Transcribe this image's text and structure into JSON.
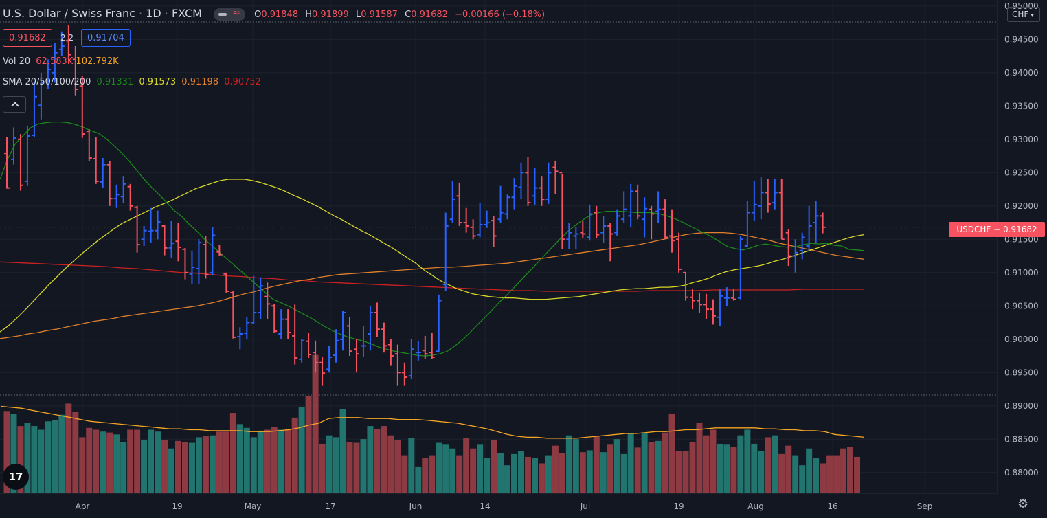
{
  "header": {
    "symbol_title": "U.S. Dollar / Swiss Franc",
    "interval": "1D",
    "exchange": "FXCM",
    "ohlc": {
      "o_label": "O",
      "o": "0.91848",
      "h_label": "H",
      "h": "0.91899",
      "l_label": "L",
      "l": "0.91587",
      "c_label": "C",
      "c": "0.91682",
      "change": "−0.00166 (−0.18%)"
    },
    "bid": "0.91682",
    "spread": "2.2",
    "ask": "0.91704"
  },
  "indicators": {
    "vol": {
      "label": "Vol 20",
      "v1": "62.583K",
      "v2": "102.792K"
    },
    "sma": {
      "label": "SMA 20/50/100/200",
      "v20": "0.91331",
      "v50": "0.91573",
      "v100": "0.91198",
      "v200": "0.90752"
    }
  },
  "axis": {
    "currency": "CHF",
    "last_label": "USDCHF",
    "last_value": "0.91682"
  },
  "colors": {
    "up": "#2962ff",
    "down": "#f7525f",
    "vol_up": "#22756f",
    "vol_down": "#8e3a43",
    "sma20": "#1b8a1b",
    "sma50": "#d6d62a",
    "sma100": "#e0802b",
    "sma200": "#cc2121",
    "vol_ma": "#f5a623"
  },
  "chart_data": {
    "type": "ohlc",
    "y_ticks": [
      "0.95000",
      "0.94500",
      "0.94000",
      "0.93500",
      "0.93000",
      "0.92500",
      "0.92000",
      "0.91500",
      "0.91000",
      "0.90500",
      "0.90000",
      "0.89500",
      "0.89000",
      "0.88500",
      "0.88000"
    ],
    "x_ticks": [
      "Apr",
      "19",
      "May",
      "17",
      "Jun",
      "14",
      "Jul",
      "19",
      "Aug",
      "16",
      "Sep"
    ],
    "ylim": [
      0.8775,
      0.9505
    ],
    "last_price": 0.91682,
    "bars": [
      [
        0.9303,
        0.9226,
        0.9279,
        0.9227
      ],
      [
        0.9318,
        0.9262,
        0.927,
        0.9302
      ],
      [
        0.9308,
        0.9223,
        0.93,
        0.9231
      ],
      [
        0.932,
        0.923,
        0.9237,
        0.9305
      ],
      [
        0.9387,
        0.9303,
        0.9306,
        0.9364
      ],
      [
        0.94,
        0.933,
        0.9351,
        0.9385
      ],
      [
        0.942,
        0.9375,
        0.9389,
        0.9405
      ],
      [
        0.9445,
        0.9385,
        0.94,
        0.943
      ],
      [
        0.9462,
        0.9425,
        0.9435,
        0.944
      ],
      [
        0.9472,
        0.942,
        0.9448,
        0.9427
      ],
      [
        0.944,
        0.9365,
        0.942,
        0.9375
      ],
      [
        0.9395,
        0.9302,
        0.938,
        0.9308
      ],
      [
        0.9315,
        0.9267,
        0.9312,
        0.9272
      ],
      [
        0.9303,
        0.9233,
        0.9271,
        0.9237
      ],
      [
        0.9272,
        0.9227,
        0.9236,
        0.9262
      ],
      [
        0.9267,
        0.92,
        0.9262,
        0.9211
      ],
      [
        0.9232,
        0.9197,
        0.9211,
        0.9217
      ],
      [
        0.9245,
        0.9204,
        0.9214,
        0.9233
      ],
      [
        0.9233,
        0.9193,
        0.9229,
        0.92
      ],
      [
        0.92,
        0.913,
        0.9198,
        0.9142
      ],
      [
        0.917,
        0.914,
        0.915,
        0.9163
      ],
      [
        0.9197,
        0.9145,
        0.9162,
        0.9163
      ],
      [
        0.9193,
        0.915,
        0.9163,
        0.9176
      ],
      [
        0.9172,
        0.9126,
        0.917,
        0.9137
      ],
      [
        0.9178,
        0.9122,
        0.9137,
        0.9144
      ],
      [
        0.9175,
        0.9117,
        0.9147,
        0.9138
      ],
      [
        0.9137,
        0.909,
        0.9135,
        0.91
      ],
      [
        0.9133,
        0.9083,
        0.9098,
        0.9108
      ],
      [
        0.915,
        0.9083,
        0.9106,
        0.9145
      ],
      [
        0.9155,
        0.9091,
        0.9142,
        0.9097
      ],
      [
        0.9168,
        0.9096,
        0.91,
        0.9156
      ],
      [
        0.9142,
        0.9125,
        0.9131,
        0.9127
      ],
      [
        0.91,
        0.907,
        0.9098,
        0.9072
      ],
      [
        0.9072,
        0.9001,
        0.907,
        0.9003
      ],
      [
        0.9018,
        0.8985,
        0.9004,
        0.9008
      ],
      [
        0.9033,
        0.9,
        0.9009,
        0.9025
      ],
      [
        0.9095,
        0.9023,
        0.9025,
        0.904
      ],
      [
        0.9093,
        0.903,
        0.904,
        0.908
      ],
      [
        0.9085,
        0.903,
        0.9064,
        0.9053
      ],
      [
        0.9053,
        0.901,
        0.905,
        0.9012
      ],
      [
        0.9045,
        0.9,
        0.9008,
        0.903
      ],
      [
        0.9045,
        0.9,
        0.903,
        0.901
      ],
      [
        0.9052,
        0.8962,
        0.9005,
        0.8972
      ],
      [
        0.9,
        0.8965,
        0.897,
        0.8998
      ],
      [
        0.901,
        0.8972,
        0.8997,
        0.8977
      ],
      [
        0.8998,
        0.895,
        0.898,
        0.8965
      ],
      [
        0.8973,
        0.893,
        0.8965,
        0.8949
      ],
      [
        0.899,
        0.895,
        0.8955,
        0.8973
      ],
      [
        0.9015,
        0.8965,
        0.8976,
        0.8998
      ],
      [
        0.9043,
        0.8983,
        0.9,
        0.904
      ],
      [
        0.9033,
        0.8975,
        0.902,
        0.8982
      ],
      [
        0.9,
        0.895,
        0.8985,
        0.8978
      ],
      [
        0.902,
        0.8973,
        0.899,
        0.899
      ],
      [
        0.905,
        0.8983,
        0.9008,
        0.904
      ],
      [
        0.9055,
        0.9003,
        0.904,
        0.9015
      ],
      [
        0.9025,
        0.898,
        0.9015,
        0.899
      ],
      [
        0.9,
        0.896,
        0.8992,
        0.8975
      ],
      [
        0.8992,
        0.893,
        0.8978,
        0.895
      ],
      [
        0.8965,
        0.893,
        0.895,
        0.8943
      ],
      [
        0.9,
        0.894,
        0.8945,
        0.8985
      ],
      [
        0.8997,
        0.8968,
        0.898,
        0.898
      ],
      [
        0.9005,
        0.897,
        0.8983,
        0.8978
      ],
      [
        0.901,
        0.897,
        0.898,
        0.8973
      ],
      [
        0.9067,
        0.898,
        0.8982,
        0.9058
      ],
      [
        0.919,
        0.9072,
        0.9082,
        0.917
      ],
      [
        0.9238,
        0.9175,
        0.918,
        0.921
      ],
      [
        0.9235,
        0.917,
        0.9215,
        0.9175
      ],
      [
        0.9197,
        0.916,
        0.9175,
        0.917
      ],
      [
        0.918,
        0.915,
        0.9168,
        0.9155
      ],
      [
        0.9205,
        0.9153,
        0.9157,
        0.9172
      ],
      [
        0.9193,
        0.9167,
        0.9172,
        0.9175
      ],
      [
        0.9185,
        0.9138,
        0.9178,
        0.9155
      ],
      [
        0.923,
        0.9175,
        0.918,
        0.919
      ],
      [
        0.9217,
        0.918,
        0.9188,
        0.9213
      ],
      [
        0.9242,
        0.9195,
        0.9213,
        0.923
      ],
      [
        0.9265,
        0.921,
        0.9228,
        0.925
      ],
      [
        0.9274,
        0.92,
        0.925,
        0.9205
      ],
      [
        0.9257,
        0.9202,
        0.9215,
        0.9227
      ],
      [
        0.9245,
        0.92,
        0.9227,
        0.921
      ],
      [
        0.9265,
        0.9203,
        0.921,
        0.925
      ],
      [
        0.9268,
        0.9218,
        0.9258,
        0.9252
      ],
      [
        0.9248,
        0.9135,
        0.925,
        0.915
      ],
      [
        0.9175,
        0.9135,
        0.915,
        0.916
      ],
      [
        0.9168,
        0.9135,
        0.9155,
        0.9158
      ],
      [
        0.9177,
        0.9152,
        0.916,
        0.9158
      ],
      [
        0.9202,
        0.9148,
        0.9153,
        0.9188
      ],
      [
        0.92,
        0.9152,
        0.919,
        0.9157
      ],
      [
        0.9185,
        0.9145,
        0.916,
        0.917
      ],
      [
        0.9175,
        0.9117,
        0.917,
        0.9158
      ],
      [
        0.9195,
        0.9155,
        0.916,
        0.9185
      ],
      [
        0.9222,
        0.9175,
        0.918,
        0.9195
      ],
      [
        0.9233,
        0.9168,
        0.9185,
        0.9222
      ],
      [
        0.9232,
        0.918,
        0.9222,
        0.9185
      ],
      [
        0.9213,
        0.9153,
        0.918,
        0.9196
      ],
      [
        0.92,
        0.915,
        0.9195,
        0.9188
      ],
      [
        0.9222,
        0.9175,
        0.9192,
        0.9195
      ],
      [
        0.921,
        0.915,
        0.9195,
        0.9153
      ],
      [
        0.9195,
        0.913,
        0.9155,
        0.9148
      ],
      [
        0.916,
        0.91,
        0.915,
        0.9105
      ],
      [
        0.91,
        0.9058,
        0.91,
        0.9063
      ],
      [
        0.9075,
        0.9045,
        0.9063,
        0.9058
      ],
      [
        0.907,
        0.904,
        0.9058,
        0.9052
      ],
      [
        0.9068,
        0.903,
        0.9052,
        0.9045
      ],
      [
        0.906,
        0.9022,
        0.9045,
        0.9035
      ],
      [
        0.9075,
        0.902,
        0.9033,
        0.9065
      ],
      [
        0.9078,
        0.905,
        0.9062,
        0.9062
      ],
      [
        0.9075,
        0.9058,
        0.9062,
        0.906
      ],
      [
        0.9155,
        0.906,
        0.9062,
        0.915
      ],
      [
        0.9208,
        0.9138,
        0.914,
        0.919
      ],
      [
        0.9238,
        0.9178,
        0.919,
        0.9202
      ],
      [
        0.9243,
        0.918,
        0.92,
        0.922
      ],
      [
        0.924,
        0.919,
        0.922,
        0.9203
      ],
      [
        0.924,
        0.9195,
        0.9205,
        0.922
      ],
      [
        0.924,
        0.915,
        0.922,
        0.915
      ],
      [
        0.9165,
        0.911,
        0.916,
        0.9125
      ],
      [
        0.915,
        0.91,
        0.9125,
        0.913
      ],
      [
        0.916,
        0.912,
        0.9133,
        0.9153
      ],
      [
        0.92,
        0.9133,
        0.914,
        0.917
      ],
      [
        0.9208,
        0.9145,
        0.9175,
        0.9185
      ],
      [
        0.919,
        0.9159,
        0.9185,
        0.9168
      ]
    ],
    "vol_ylim": [
      0,
      125
    ],
    "volume": [
      88,
      85,
      72,
      75,
      72,
      68,
      77,
      78,
      84,
      96,
      87,
      60,
      70,
      68,
      66,
      65,
      63,
      55,
      68,
      68,
      57,
      68,
      66,
      57,
      48,
      56,
      55,
      54,
      60,
      61,
      62,
      66,
      66,
      86,
      74,
      70,
      60,
      67,
      68,
      71,
      68,
      69,
      81,
      92,
      104,
      148,
      53,
      62,
      60,
      90,
      55,
      54,
      58,
      72,
      69,
      72,
      62,
      57,
      40,
      59,
      28,
      38,
      40,
      54,
      52,
      48,
      40,
      59,
      48,
      52,
      38,
      57,
      43,
      30,
      42,
      45,
      39,
      38,
      32,
      40,
      51,
      43,
      62,
      58,
      44,
      46,
      61,
      44,
      52,
      58,
      42,
      64,
      49,
      64,
      55,
      56,
      65,
      85,
      45,
      45,
      55,
      75,
      62,
      68,
      53,
      52,
      50,
      62,
      68,
      53,
      45,
      60,
      62,
      42,
      51,
      40,
      30,
      48,
      38,
      32,
      40,
      40,
      48,
      50,
      39
    ],
    "sma20": [
      0.924,
      0.927,
      0.9293,
      0.9305,
      0.9317,
      0.9323,
      0.9325,
      0.9326,
      0.9326,
      0.9325,
      0.9322,
      0.9318,
      0.9313,
      0.9309,
      0.9301,
      0.9291,
      0.928,
      0.9268,
      0.9254,
      0.924,
      0.9228,
      0.9217,
      0.9205,
      0.9193,
      0.9184,
      0.9172,
      0.9162,
      0.915,
      0.914,
      0.913,
      0.912,
      0.911,
      0.91,
      0.909,
      0.908,
      0.907,
      0.906,
      0.9055,
      0.905,
      0.9044,
      0.9038,
      0.9032,
      0.9025,
      0.9018,
      0.9012,
      0.9007,
      0.9003,
      0.9,
      0.8997,
      0.8993,
      0.8988,
      0.8985,
      0.8982,
      0.898,
      0.8978,
      0.8976,
      0.8975,
      0.8976,
      0.8978,
      0.8982,
      0.899,
      0.8999,
      0.901,
      0.9022,
      0.9033,
      0.9045,
      0.9057,
      0.9068,
      0.908,
      0.9092,
      0.9104,
      0.9116,
      0.9128,
      0.914,
      0.9152,
      0.9163,
      0.9172,
      0.918,
      0.9187,
      0.919,
      0.9192,
      0.9192,
      0.9192,
      0.9191,
      0.919,
      0.919,
      0.919,
      0.9188,
      0.9185,
      0.9181,
      0.9176,
      0.917,
      0.9164,
      0.9159,
      0.9153,
      0.9146,
      0.9139,
      0.9136,
      0.9134,
      0.9137,
      0.9141,
      0.9143,
      0.9141,
      0.9139,
      0.9138,
      0.9139,
      0.9142,
      0.9144,
      0.9143,
      0.9144,
      0.9141,
      0.914,
      0.9135,
      0.9134,
      0.9133
    ],
    "sma50": [
      0.9011,
      0.902,
      0.9031,
      0.9043,
      0.9056,
      0.9069,
      0.9082,
      0.9094,
      0.9106,
      0.9117,
      0.9128,
      0.9138,
      0.9148,
      0.9157,
      0.9166,
      0.9174,
      0.918,
      0.9186,
      0.9192,
      0.9198,
      0.9203,
      0.9208,
      0.9214,
      0.922,
      0.9226,
      0.923,
      0.9234,
      0.9238,
      0.924,
      0.924,
      0.924,
      0.9238,
      0.9235,
      0.9231,
      0.9227,
      0.9222,
      0.9216,
      0.9211,
      0.9205,
      0.9199,
      0.9192,
      0.9185,
      0.9179,
      0.9172,
      0.9165,
      0.9159,
      0.9152,
      0.9145,
      0.9138,
      0.913,
      0.9122,
      0.9114,
      0.9104,
      0.9096,
      0.9088,
      0.9082,
      0.9076,
      0.9072,
      0.9068,
      0.9066,
      0.9064,
      0.9063,
      0.9062,
      0.9062,
      0.9061,
      0.906,
      0.906,
      0.906,
      0.9061,
      0.9062,
      0.9063,
      0.9064,
      0.9066,
      0.9068,
      0.907,
      0.9072,
      0.9074,
      0.9075,
      0.9076,
      0.9076,
      0.9077,
      0.9078,
      0.9078,
      0.9079,
      0.9081,
      0.9085,
      0.9088,
      0.9092,
      0.9097,
      0.9101,
      0.9104,
      0.9106,
      0.9108,
      0.911,
      0.9113,
      0.9117,
      0.912,
      0.9124,
      0.9128,
      0.9132,
      0.9136,
      0.914,
      0.9144,
      0.9148,
      0.9152,
      0.9155,
      0.9157
    ],
    "sma100": [
      0.9001,
      0.9003,
      0.9005,
      0.9008,
      0.901,
      0.9013,
      0.9015,
      0.9018,
      0.9021,
      0.9024,
      0.9027,
      0.9029,
      0.9031,
      0.9034,
      0.9036,
      0.9038,
      0.904,
      0.9042,
      0.9044,
      0.9046,
      0.9048,
      0.905,
      0.9053,
      0.9056,
      0.906,
      0.9064,
      0.9068,
      0.9071,
      0.9075,
      0.9079,
      0.9082,
      0.9085,
      0.9088,
      0.909,
      0.9093,
      0.9095,
      0.9097,
      0.9098,
      0.9099,
      0.91,
      0.9101,
      0.9102,
      0.9103,
      0.9104,
      0.9105,
      0.9106,
      0.9107,
      0.9108,
      0.9108,
      0.9109,
      0.911,
      0.9111,
      0.9112,
      0.9113,
      0.9114,
      0.9116,
      0.9118,
      0.912,
      0.9122,
      0.9124,
      0.9126,
      0.9128,
      0.913,
      0.9132,
      0.9134,
      0.9136,
      0.9138,
      0.914,
      0.9142,
      0.9145,
      0.9148,
      0.9151,
      0.9154,
      0.9157,
      0.9159,
      0.916,
      0.916,
      0.916,
      0.9159,
      0.9157,
      0.9154,
      0.9151,
      0.9148,
      0.9144,
      0.9141,
      0.9138,
      0.9135,
      0.9132,
      0.9129,
      0.9126,
      0.9124,
      0.9122,
      0.912
    ],
    "sma200": [
      0.9116,
      0.9115,
      0.9114,
      0.9113,
      0.9112,
      0.9111,
      0.911,
      0.9109,
      0.9107,
      0.9106,
      0.9104,
      0.9102,
      0.91,
      0.9099,
      0.9097,
      0.9095,
      0.9094,
      0.9092,
      0.9091,
      0.9089,
      0.9088,
      0.9086,
      0.9085,
      0.9084,
      0.9083,
      0.9082,
      0.9081,
      0.908,
      0.9079,
      0.9078,
      0.9077,
      0.9076,
      0.9075,
      0.9074,
      0.9073,
      0.9073,
      0.9072,
      0.9072,
      0.9072,
      0.9072,
      0.9072,
      0.9072,
      0.9072,
      0.9073,
      0.9073,
      0.9073,
      0.9073,
      0.9074,
      0.9074,
      0.9074,
      0.9074,
      0.9074,
      0.9074,
      0.9075,
      0.9075,
      0.9075,
      0.9075,
      0.9075
    ],
    "vol_ma": [
      93,
      92,
      91,
      89,
      87,
      85,
      83,
      81,
      79,
      77,
      76,
      75,
      74,
      73,
      72,
      71,
      70,
      69,
      69,
      68,
      68,
      67,
      67,
      67,
      67,
      66,
      66,
      66,
      67,
      68,
      70,
      73,
      75,
      80,
      81,
      81,
      81,
      80,
      80,
      80,
      79,
      79,
      79,
      78,
      77,
      76,
      75,
      73,
      71,
      69,
      66,
      63,
      61,
      60,
      60,
      59,
      59,
      59,
      59,
      60,
      61,
      62,
      63,
      64,
      64,
      65,
      66,
      66,
      67,
      68,
      68,
      69,
      70,
      70,
      70,
      70,
      70,
      69,
      69,
      68,
      68,
      67,
      67,
      66,
      63,
      62,
      61,
      60
    ]
  }
}
